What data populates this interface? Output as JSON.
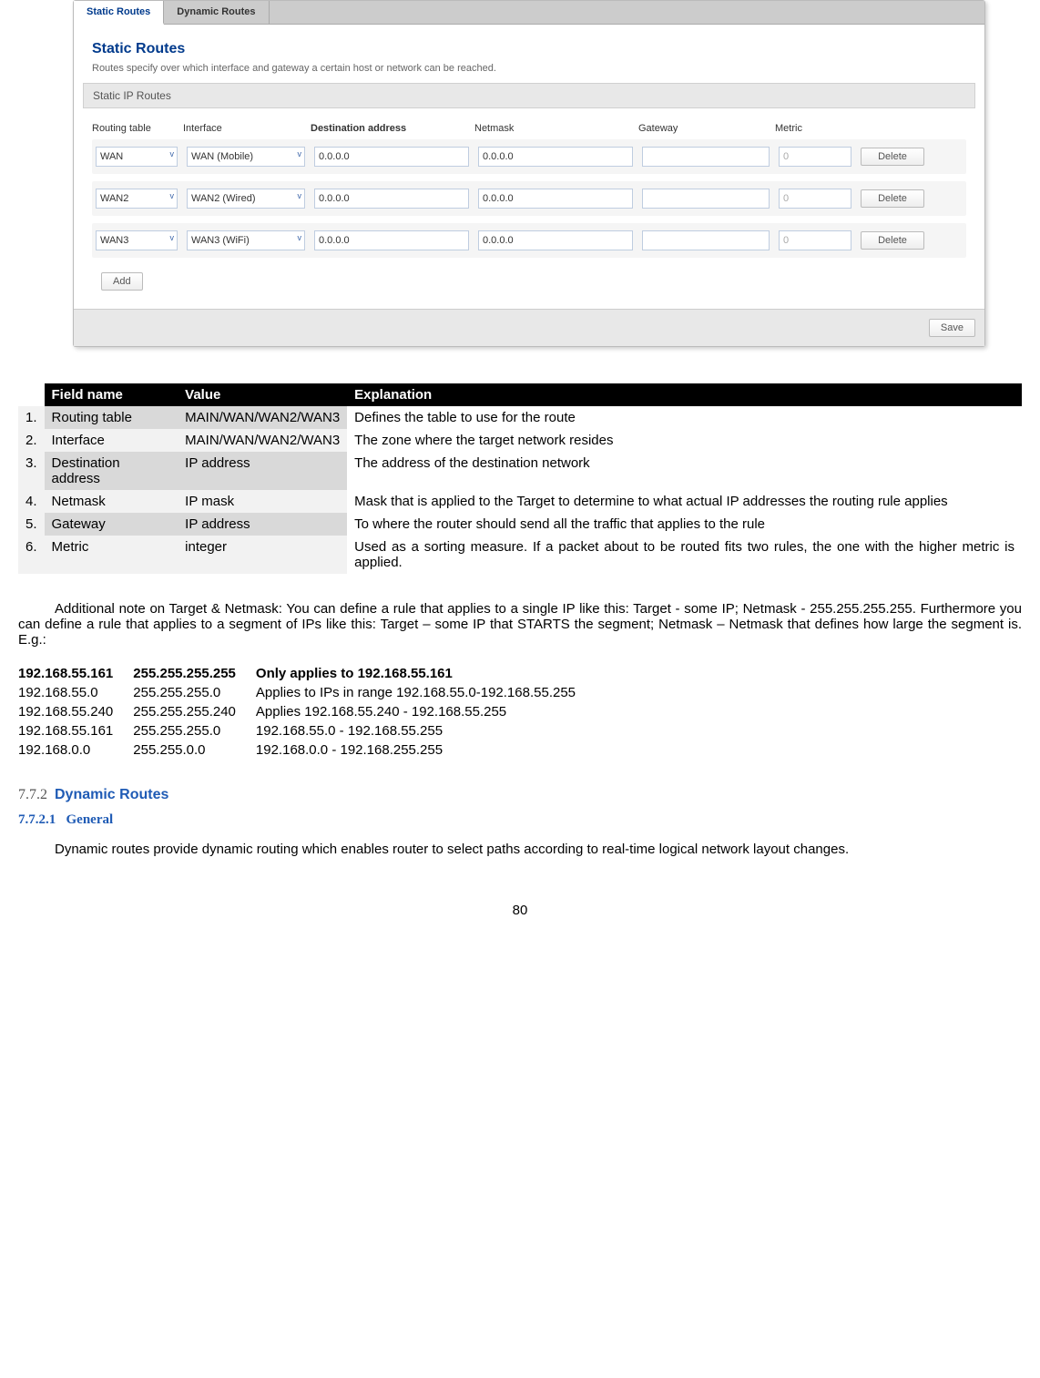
{
  "ui": {
    "tabs": [
      "Static Routes",
      "Dynamic Routes"
    ],
    "active_tab": 0,
    "title": "Static Routes",
    "desc": "Routes specify over which interface and gateway a certain host or network can be reached.",
    "section": "Static IP Routes",
    "columns": {
      "c0": "Routing table",
      "c1": "Interface",
      "c2": "Destination address",
      "c3": "Netmask",
      "c4": "Gateway",
      "c5": "Metric"
    },
    "rows": [
      {
        "rt": "WAN",
        "iface": "WAN (Mobile)",
        "dest": "0.0.0.0",
        "mask": "0.0.0.0",
        "gw": "",
        "metric": "0"
      },
      {
        "rt": "WAN2",
        "iface": "WAN2 (Wired)",
        "dest": "0.0.0.0",
        "mask": "0.0.0.0",
        "gw": "",
        "metric": "0"
      },
      {
        "rt": "WAN3",
        "iface": "WAN3 (WiFi)",
        "dest": "0.0.0.0",
        "mask": "0.0.0.0",
        "gw": "",
        "metric": "0"
      }
    ],
    "btn_delete": "Delete",
    "btn_add": "Add",
    "btn_save": "Save"
  },
  "fields": {
    "head": {
      "name": "Field name",
      "value": "Value",
      "expl": "Explanation"
    },
    "rows": [
      {
        "n": "1.",
        "name": "Routing table",
        "value": "MAIN/WAN/WAN2/WAN3",
        "expl": "Defines the table to use for the route"
      },
      {
        "n": "2.",
        "name": "Interface",
        "value": "MAIN/WAN/WAN2/WAN3",
        "expl": "The zone where the target network resides"
      },
      {
        "n": "3.",
        "name": "Destination address",
        "value": "IP address",
        "expl": "The address of the destination network"
      },
      {
        "n": "4.",
        "name": "Netmask",
        "value": "IP mask",
        "expl": "Mask that is applied to the Target to determine to what actual IP addresses the routing rule applies"
      },
      {
        "n": "5.",
        "name": "Gateway",
        "value": "IP address",
        "expl": "To where the router should send all the traffic that applies to the rule"
      },
      {
        "n": "6.",
        "name": "Metric",
        "value": "integer",
        "expl": "Used as a sorting measure. If a packet about to be routed fits two rules, the one with the higher metric is applied."
      }
    ]
  },
  "note": "Additional note on Target & Netmask: You can define a rule that applies to a single IP like this: Target - some IP; Netmask - 255.255.255.255. Furthermore you can define a rule that applies to a segment of IPs like this: Target – some IP that STARTS the segment; Netmask – Netmask that defines how large the segment is. E.g.:",
  "examples": [
    {
      "ip": "192.168.55.161",
      "mask": "255.255.255.255",
      "desc": "Only applies to 192.168.55.161",
      "bold": true
    },
    {
      "ip": "192.168.55.0",
      "mask": "255.255.255.0",
      "desc": "Applies to IPs in range 192.168.55.0-192.168.55.255",
      "bold": false
    },
    {
      "ip": "192.168.55.240",
      "mask": "255.255.255.240",
      "desc": "Applies 192.168.55.240 -  192.168.55.255",
      "bold": false
    },
    {
      "ip": "192.168.55.161",
      "mask": "255.255.255.0",
      "desc": "192.168.55.0 - 192.168.55.255",
      "bold": false
    },
    {
      "ip": "192.168.0.0",
      "mask": "255.255.0.0",
      "desc": "192.168.0.0 - 192.168.255.255",
      "bold": false
    }
  ],
  "sec": {
    "num": "7.7.2",
    "title": "Dynamic Routes"
  },
  "sub": {
    "num": "7.7.2.1",
    "title": "General"
  },
  "para": "Dynamic routes provide dynamic routing which enables router to select paths according to real-time logical network layout changes.",
  "pagenum": "80"
}
